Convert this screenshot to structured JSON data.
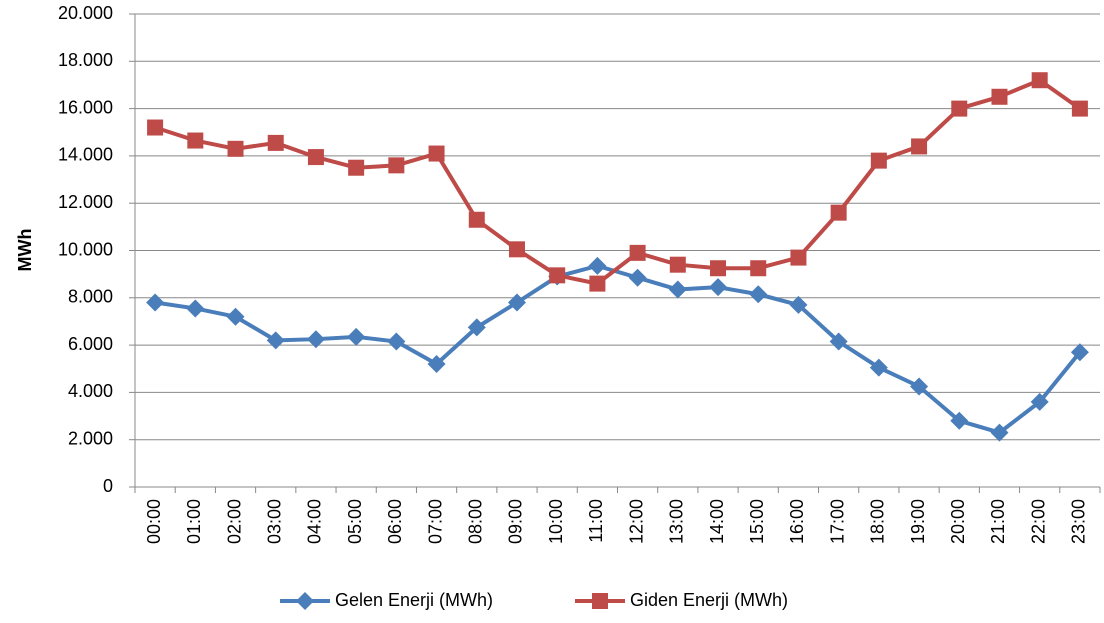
{
  "chart_data": {
    "type": "line",
    "y_label": "MWh",
    "categories": [
      "00:00",
      "01:00",
      "02:00",
      "03:00",
      "04:00",
      "05:00",
      "06:00",
      "07:00",
      "08:00",
      "09:00",
      "10:00",
      "11:00",
      "12:00",
      "13:00",
      "14:00",
      "15:00",
      "16:00",
      "17:00",
      "18:00",
      "19:00",
      "20:00",
      "21:00",
      "22:00",
      "23:00"
    ],
    "series": [
      {
        "name": "Gelen Enerji (MWh)",
        "color": "#4a7ebb",
        "marker": "diamond",
        "values": [
          7800,
          7550,
          7200,
          6200,
          6250,
          6350,
          6150,
          5200,
          6750,
          7800,
          8900,
          9350,
          8850,
          8350,
          8450,
          8150,
          7700,
          6150,
          5050,
          4250,
          2800,
          2300,
          3600,
          5700
        ]
      },
      {
        "name": "Giden Enerji (MWh)",
        "color": "#be4b48",
        "marker": "square",
        "values": [
          15200,
          14650,
          14300,
          14550,
          13950,
          13500,
          13600,
          14100,
          11300,
          10050,
          8950,
          8600,
          9900,
          9400,
          9250,
          9250,
          9700,
          11600,
          13800,
          14400,
          16000,
          16500,
          17200,
          16000
        ]
      }
    ],
    "ylim": [
      0,
      20000
    ],
    "yticks": [
      0,
      {
        "value": 2000,
        "label": "2.000"
      },
      {
        "value": 4000,
        "label": "4.000"
      },
      {
        "value": 6000,
        "label": "6.000"
      },
      {
        "value": 8000,
        "label": "8.000"
      },
      {
        "value": 10000,
        "label": "10.000"
      },
      {
        "value": 12000,
        "label": "12.000"
      },
      {
        "value": 14000,
        "label": "14.000"
      },
      {
        "value": 16000,
        "label": "16.000"
      },
      {
        "value": 18000,
        "label": "18.000"
      },
      {
        "value": 20000,
        "label": "20.000"
      }
    ],
    "grid": true,
    "legend": "bottom"
  }
}
